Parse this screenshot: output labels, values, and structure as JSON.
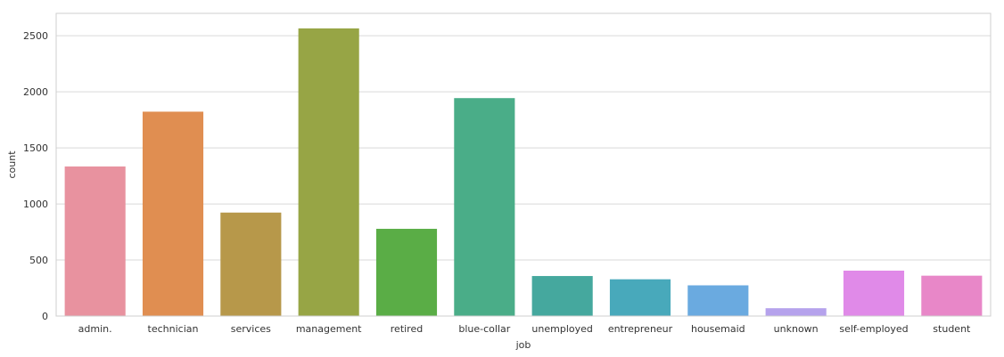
{
  "chart_data": {
    "type": "bar",
    "title": "",
    "xlabel": "job",
    "ylabel": "count",
    "categories": [
      "admin.",
      "technician",
      "services",
      "management",
      "retired",
      "blue-collar",
      "unemployed",
      "entrepreneur",
      "housemaid",
      "unknown",
      "self-employed",
      "student"
    ],
    "values": [
      1334,
      1823,
      923,
      2566,
      778,
      1944,
      357,
      328,
      274,
      70,
      405,
      360
    ],
    "colors": [
      "#e8929f",
      "#e08e51",
      "#b7984a",
      "#97a545",
      "#5aad46",
      "#4aad88",
      "#45a89e",
      "#48a9bb",
      "#6aaae0",
      "#b5a2ec",
      "#e08ae8",
      "#e887c8"
    ],
    "ylim": [
      0,
      2700
    ],
    "yticks": [
      0,
      500,
      1000,
      1500,
      2000,
      2500
    ],
    "grid": true
  }
}
